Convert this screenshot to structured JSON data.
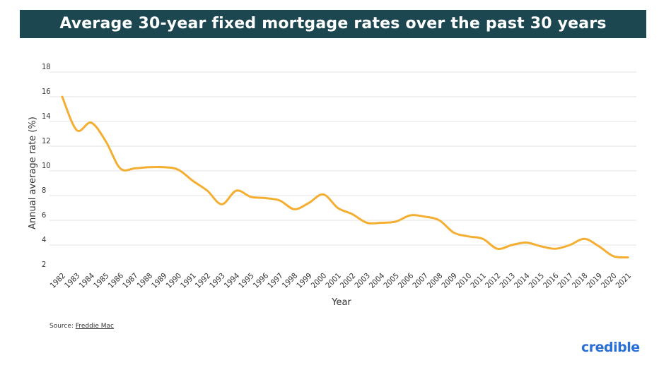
{
  "chart_data": {
    "type": "line",
    "title": "Average 30-year fixed mortgage rates over the past 30 years",
    "xlabel": "Year",
    "ylabel": "Annual average rate (%)",
    "ylim": [
      2,
      18
    ],
    "yticks": [
      2,
      4,
      6,
      8,
      10,
      12,
      14,
      16,
      18
    ],
    "grid": true,
    "line_color": "#f4ae31",
    "x": [
      "1982",
      "1983",
      "1984",
      "1985",
      "1986",
      "1987",
      "1988",
      "1989",
      "1990",
      "1991",
      "1992",
      "1993",
      "1994",
      "1995",
      "1996",
      "1997",
      "1998",
      "1999",
      "2000",
      "2001",
      "2002",
      "2003",
      "2004",
      "2005",
      "2006",
      "2007",
      "2008",
      "2009",
      "2010",
      "2011",
      "2012",
      "2013",
      "2014",
      "2015",
      "2016",
      "2017",
      "2018",
      "2019",
      "2020",
      "2021"
    ],
    "series": [
      {
        "values": [
          16.0,
          13.3,
          13.9,
          12.4,
          10.2,
          10.2,
          10.3,
          10.3,
          10.1,
          9.2,
          8.4,
          7.3,
          8.4,
          7.9,
          7.8,
          7.6,
          6.9,
          7.4,
          8.1,
          7.0,
          6.5,
          5.8,
          5.8,
          5.9,
          6.4,
          6.3,
          6.0,
          5.0,
          4.7,
          4.5,
          3.7,
          4.0,
          4.2,
          3.9,
          3.7,
          4.0,
          4.5,
          3.9,
          3.1,
          3.0
        ]
      }
    ]
  },
  "source": {
    "label": "Source:",
    "link": "Freddie Mac"
  },
  "brand": "credible",
  "colors": {
    "title_bg": "#1c4650",
    "line": "#f4ae31",
    "brand": "#2a6fd6"
  }
}
